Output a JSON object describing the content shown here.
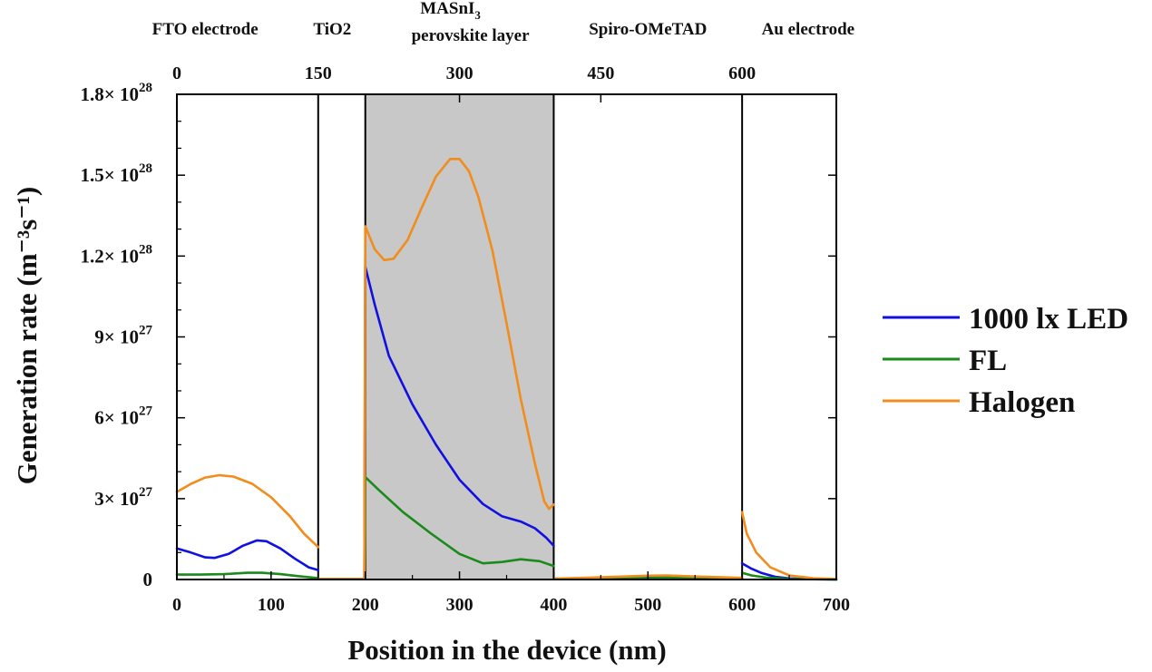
{
  "chart_data": {
    "type": "line",
    "xlabel": "Position in the device (nm)",
    "ylabel": "Generation rate (m⁻³s⁻¹)",
    "xlim": [
      0,
      700
    ],
    "ylim": [
      0,
      1.8e+28
    ],
    "x_ticks": [
      0,
      100,
      200,
      300,
      400,
      500,
      600,
      700
    ],
    "x_tick_labels": [
      "0",
      "100",
      "200",
      "300",
      "400",
      "500",
      "600",
      "700"
    ],
    "top_ticks": [
      0,
      150,
      300,
      450,
      600
    ],
    "top_tick_labels": [
      "0",
      "150",
      "300",
      "450",
      "600"
    ],
    "y_ticks": [
      0,
      3e+27,
      6e+27,
      9e+27,
      1.2e+28,
      1.5e+28,
      1.8e+28
    ],
    "y_tick_labels": [
      {
        "mant": "0",
        "exp": ""
      },
      {
        "mant": "3×",
        "exp": "27"
      },
      {
        "mant": "6×",
        "exp": "27"
      },
      {
        "mant": "9×",
        "exp": "27"
      },
      {
        "mant": "1.2×",
        "exp": "28"
      },
      {
        "mant": "1.5×",
        "exp": "28"
      },
      {
        "mant": "1.8×",
        "exp": "28"
      }
    ],
    "layer_boundaries": [
      150,
      200,
      400,
      600
    ],
    "shaded_region": {
      "x": [
        200,
        400
      ],
      "color": "#c8c8c8"
    },
    "layers": [
      {
        "label": "FTO electrode",
        "x": 30
      },
      {
        "label": "TiO2",
        "x": 165
      },
      {
        "label": "MASnI",
        "sub": "3",
        "label2": "perovskite layer",
        "x": 300
      },
      {
        "label": "Spiro-OMeTAD",
        "x": 500
      },
      {
        "label": "Au electrode",
        "x": 670
      }
    ],
    "legend_position": "right",
    "series": [
      {
        "name": "1000 lx LED",
        "color": "#1010e0",
        "segments": [
          [
            [
              0,
              1.15e+27
            ],
            [
              15,
              1e+27
            ],
            [
              30,
              8.2e+26
            ],
            [
              40,
              8e+26
            ],
            [
              55,
              9.5e+26
            ],
            [
              70,
              1.25e+27
            ],
            [
              85,
              1.45e+27
            ],
            [
              95,
              1.42e+27
            ],
            [
              110,
              1.15e+27
            ],
            [
              125,
              7.8e+26
            ],
            [
              140,
              4.5e+26
            ],
            [
              150,
              3.5e+26
            ]
          ],
          [
            [
              150,
              2e+25
            ],
            [
              198,
              2e+25
            ]
          ],
          [
            [
              199,
              2e+25
            ],
            [
              200,
              1.16e+28
            ],
            [
              210,
              1.02e+28
            ],
            [
              225,
              8.3e+27
            ],
            [
              250,
              6.5e+27
            ],
            [
              275,
              5e+27
            ],
            [
              300,
              3.7e+27
            ],
            [
              325,
              2.8e+27
            ],
            [
              345,
              2.35e+27
            ],
            [
              365,
              2.15e+27
            ],
            [
              380,
              1.9e+27
            ],
            [
              392,
              1.55e+27
            ],
            [
              400,
              1.25e+27
            ]
          ],
          [
            [
              400,
              3e+25
            ],
            [
              450,
              4e+25
            ],
            [
              500,
              7e+25
            ],
            [
              520,
              8e+25
            ],
            [
              550,
              6e+25
            ],
            [
              600,
              4e+25
            ]
          ],
          [
            [
              600,
              6e+26
            ],
            [
              610,
              4e+26
            ],
            [
              620,
              2.5e+26
            ],
            [
              635,
              1e+26
            ],
            [
              650,
              4e+25
            ],
            [
              675,
              1e+25
            ],
            [
              700,
              0
            ]
          ]
        ]
      },
      {
        "name": "FL",
        "color": "#1a8a1a",
        "segments": [
          [
            [
              0,
              1.8e+26
            ],
            [
              25,
              1.8e+26
            ],
            [
              50,
              2e+26
            ],
            [
              75,
              2.5e+26
            ],
            [
              90,
              2.5e+26
            ],
            [
              110,
              2e+26
            ],
            [
              130,
              1.2e+26
            ],
            [
              150,
              5e+25
            ]
          ],
          [
            [
              150,
              1e+25
            ],
            [
              198,
              1e+25
            ]
          ],
          [
            [
              199,
              1e+25
            ],
            [
              200,
              3.8e+27
            ],
            [
              215,
              3.3e+27
            ],
            [
              240,
              2.5e+27
            ],
            [
              270,
              1.7e+27
            ],
            [
              300,
              9.5e+26
            ],
            [
              325,
              6e+26
            ],
            [
              345,
              6.5e+26
            ],
            [
              365,
              7.5e+26
            ],
            [
              385,
              6.8e+26
            ],
            [
              400,
              5e+26
            ]
          ],
          [
            [
              400,
              1e+25
            ],
            [
              450,
              3e+25
            ],
            [
              500,
              5e+25
            ],
            [
              520,
              6e+25
            ],
            [
              550,
              4e+25
            ],
            [
              600,
              2e+25
            ]
          ],
          [
            [
              600,
              2.5e+26
            ],
            [
              610,
              1.5e+26
            ],
            [
              625,
              7e+25
            ],
            [
              650,
              2e+25
            ],
            [
              700,
              0
            ]
          ]
        ]
      },
      {
        "name": "Halogen",
        "color": "#f28c1c",
        "segments": [
          [
            [
              0,
              3.25e+27
            ],
            [
              15,
              3.55e+27
            ],
            [
              30,
              3.78e+27
            ],
            [
              45,
              3.87e+27
            ],
            [
              60,
              3.82e+27
            ],
            [
              80,
              3.55e+27
            ],
            [
              100,
              3.05e+27
            ],
            [
              120,
              2.35e+27
            ],
            [
              135,
              1.7e+27
            ],
            [
              150,
              1.2e+27
            ]
          ],
          [
            [
              150,
              2e+25
            ],
            [
              198,
              2e+25
            ]
          ],
          [
            [
              199,
              2e+25
            ],
            [
              200,
              1.31e+28
            ],
            [
              210,
              1.225e+28
            ],
            [
              220,
              1.185e+28
            ],
            [
              230,
              1.19e+28
            ],
            [
              245,
              1.26e+28
            ],
            [
              260,
              1.38e+28
            ],
            [
              275,
              1.495e+28
            ],
            [
              290,
              1.56e+28
            ],
            [
              300,
              1.56e+28
            ],
            [
              310,
              1.515e+28
            ],
            [
              320,
              1.42e+28
            ],
            [
              335,
              1.22e+28
            ],
            [
              350,
              9.5e+27
            ],
            [
              365,
              6.7e+27
            ],
            [
              380,
              4.3e+27
            ],
            [
              390,
              2.9e+27
            ],
            [
              395,
              2.62e+27
            ],
            [
              400,
              2.78e+27
            ]
          ],
          [
            [
              400,
              3e+25
            ],
            [
              450,
              8e+25
            ],
            [
              500,
              1.4e+26
            ],
            [
              520,
              1.5e+26
            ],
            [
              550,
              1.1e+26
            ],
            [
              600,
              6e+25
            ]
          ],
          [
            [
              600,
              2.5e+27
            ],
            [
              605,
              1.7e+27
            ],
            [
              615,
              1e+27
            ],
            [
              630,
              4.5e+26
            ],
            [
              650,
              1.5e+26
            ],
            [
              675,
              5e+25
            ],
            [
              700,
              2e+25
            ]
          ]
        ]
      }
    ]
  }
}
